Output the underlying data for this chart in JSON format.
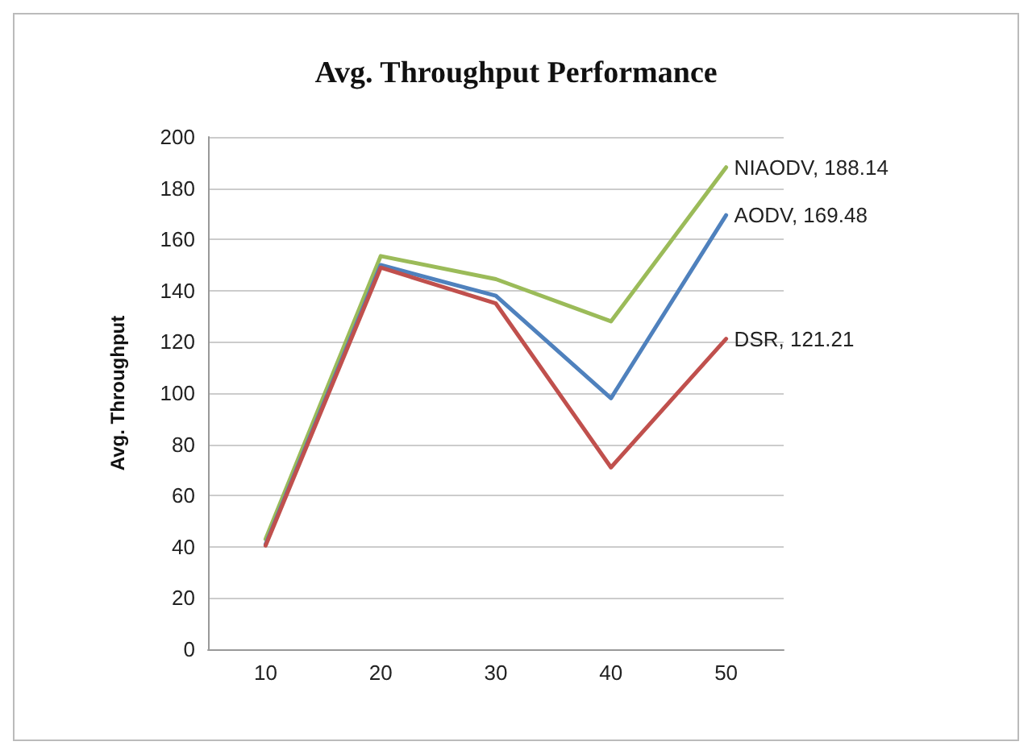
{
  "chart_data": {
    "type": "line",
    "title": "Avg. Throughput Performance",
    "ylabel": "Avg. Throughput",
    "categories": [
      "10",
      "20",
      "30",
      "40",
      "50"
    ],
    "series": [
      {
        "color": "#9bbb59",
        "values": [
          43,
          153.5,
          144.5,
          128,
          188.14
        ],
        "value_labels": [
          null,
          null,
          null,
          null,
          "NIAODV, 188.14"
        ]
      },
      {
        "color": "#4f81bd",
        "values": [
          41,
          150,
          138,
          98,
          169.48
        ],
        "value_labels": [
          null,
          null,
          null,
          null,
          "AODV, 169.48"
        ]
      },
      {
        "color": "#c0504d",
        "values": [
          40.5,
          149,
          135,
          71,
          121.21
        ],
        "value_labels": [
          null,
          null,
          null,
          null,
          "DSR, 121.21"
        ]
      }
    ],
    "ylim": [
      0,
      200
    ],
    "yticks": [
      0,
      20,
      40,
      60,
      80,
      100,
      120,
      140,
      160,
      180,
      200
    ],
    "grid": "y",
    "marker": "none",
    "line_style": "solid"
  }
}
